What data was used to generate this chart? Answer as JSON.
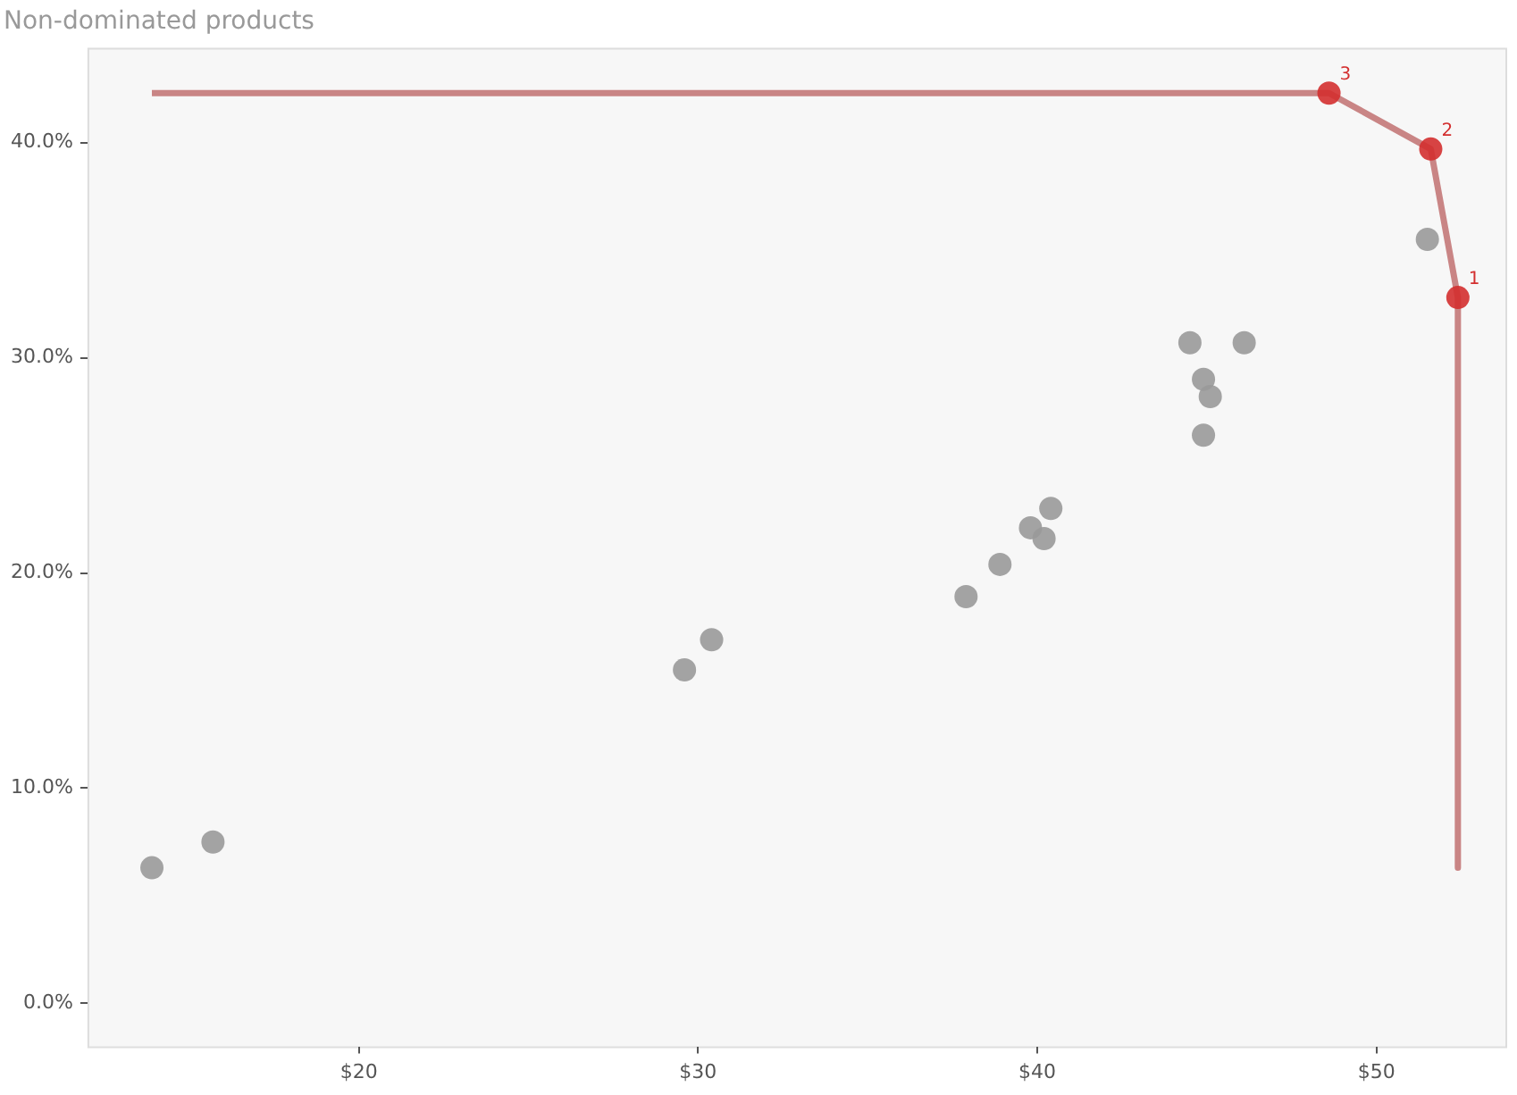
{
  "chart_data": {
    "type": "scatter",
    "title": "Non-dominated products",
    "series": [
      {
        "type": "line",
        "color": "#c98585",
        "marker": "none",
        "x": [
          13.9,
          48.6,
          51.6,
          52.4,
          52.4
        ],
        "values": [
          42.3,
          42.3,
          39.7,
          32.8,
          6.3
        ]
      },
      {
        "type": "scatter",
        "color": "#999999",
        "marker": "circle",
        "x": [
          13.9,
          15.7,
          29.6,
          30.4,
          37.9,
          38.9,
          39.8,
          40.2,
          40.4,
          44.5,
          46.1,
          44.9,
          45.1,
          44.9,
          51.5
        ],
        "values": [
          6.3,
          7.5,
          15.5,
          16.9,
          18.9,
          20.4,
          22.1,
          21.6,
          23.0,
          30.7,
          30.7,
          29.0,
          28.2,
          26.4,
          35.5
        ]
      },
      {
        "type": "scatter",
        "color": "#d32f2f",
        "marker": "circle",
        "x": [
          48.6,
          51.6,
          52.4
        ],
        "values": [
          42.3,
          39.7,
          32.8
        ]
      }
    ],
    "xlim": [
      12.0,
      53.8
    ],
    "ylim": [
      -2.0,
      44.4
    ],
    "xticks": [
      {
        "value": 20,
        "label": "$20"
      },
      {
        "value": 30,
        "label": "$30"
      },
      {
        "value": 40,
        "label": "$40"
      },
      {
        "value": 50,
        "label": "$50"
      }
    ],
    "yticks": [
      {
        "value": 0,
        "label": "0.0%"
      },
      {
        "value": 10,
        "label": "10.0%"
      },
      {
        "value": 20,
        "label": "20.0%"
      },
      {
        "value": 30,
        "label": "30.0%"
      },
      {
        "value": 40,
        "label": "40.0%"
      }
    ],
    "annotations": [
      {
        "text": "3",
        "x": 48.6,
        "y": 42.3
      },
      {
        "text": "2",
        "x": 51.6,
        "y": 39.7
      },
      {
        "text": "1",
        "x": 52.4,
        "y": 32.8
      }
    ]
  }
}
